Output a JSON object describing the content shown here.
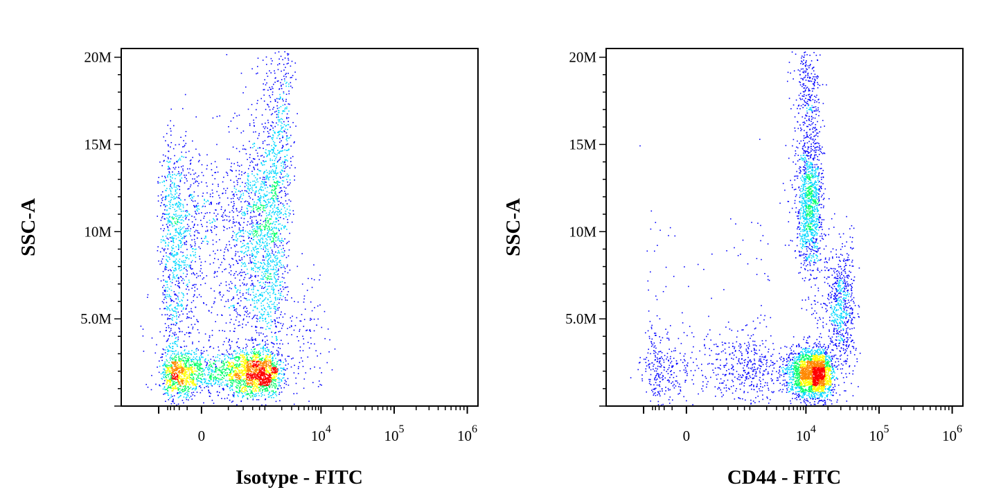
{
  "chart_data": [
    {
      "type": "scatter",
      "subtype": "flow-cytometry-density-dot-plot",
      "title": "",
      "xlabel": "Isotype - FITC",
      "ylabel": "SSC-A",
      "x_scale": "biexponential",
      "y_scale": "linear",
      "ylim": [
        0,
        20500000
      ],
      "yticks": [
        {
          "value": 5000000,
          "label": "5.0M"
        },
        {
          "value": 10000000,
          "label": "10M"
        },
        {
          "value": 15000000,
          "label": "15M"
        },
        {
          "value": 20000000,
          "label": "20M"
        }
      ],
      "xticks": [
        {
          "value": 0,
          "label": "0"
        },
        {
          "value": 10000,
          "label": "10",
          "exp": "4"
        },
        {
          "value": 100000,
          "label": "10",
          "exp": "5"
        },
        {
          "value": 1000000,
          "label": "10",
          "exp": "6"
        }
      ],
      "color_scale": [
        "#0000ff",
        "#00d8ff",
        "#00ff66",
        "#ffff00",
        "#ff8800",
        "#ff0000"
      ],
      "populations": [
        {
          "x_center": 300,
          "y_center": 1900000,
          "x_spread": 700,
          "y_spread": 700000,
          "count": 2600
        },
        {
          "x_center": 350,
          "y_center": 11000000,
          "x_spread": 900,
          "y_spread": 2200000,
          "count": 1900
        },
        {
          "x_center": 380,
          "y_center": 6000000,
          "x_spread": 900,
          "y_spread": 2000000,
          "count": 900
        },
        {
          "x_center": 1700,
          "y_center": 16000000,
          "x_spread": 700,
          "y_spread": 3000000,
          "count": 450
        },
        {
          "x_center": 3500,
          "y_center": 4000000,
          "x_spread": 4000,
          "y_spread": 2000000,
          "count": 160
        }
      ]
    },
    {
      "type": "scatter",
      "subtype": "flow-cytometry-density-dot-plot",
      "title": "",
      "xlabel": "CD44 - FITC",
      "ylabel": "SSC-A",
      "x_scale": "biexponential",
      "y_scale": "linear",
      "ylim": [
        0,
        20500000
      ],
      "yticks": [
        {
          "value": 5000000,
          "label": "5.0M"
        },
        {
          "value": 10000000,
          "label": "10M"
        },
        {
          "value": 15000000,
          "label": "15M"
        },
        {
          "value": 20000000,
          "label": "20M"
        }
      ],
      "xticks": [
        {
          "value": 0,
          "label": "0"
        },
        {
          "value": 10000,
          "label": "10",
          "exp": "4"
        },
        {
          "value": 100000,
          "label": "10",
          "exp": "5"
        },
        {
          "value": 1000000,
          "label": "10",
          "exp": "6"
        }
      ],
      "color_scale": [
        "#0000ff",
        "#00d8ff",
        "#00ff66",
        "#ffff00",
        "#ff8800",
        "#ff0000"
      ],
      "populations": [
        {
          "x_center": 12000,
          "y_center": 1900000,
          "x_spread": 5000,
          "y_spread": 700000,
          "count": 2400
        },
        {
          "x_center": 11000,
          "y_center": 11500000,
          "x_spread": 2500,
          "y_spread": 2000000,
          "count": 1100
        },
        {
          "x_center": 10500,
          "y_center": 17500000,
          "x_spread": 2500,
          "y_spread": 2000000,
          "count": 350
        },
        {
          "x_center": 30000,
          "y_center": 5500000,
          "x_spread": 8000,
          "y_spread": 2000000,
          "count": 700
        },
        {
          "x_center": 250,
          "y_center": 2200000,
          "x_spread": 900,
          "y_spread": 1200000,
          "count": 650
        },
        {
          "x_center": 200,
          "y_center": 7500000,
          "x_spread": 1200,
          "y_spread": 2500000,
          "count": 60
        }
      ]
    }
  ]
}
